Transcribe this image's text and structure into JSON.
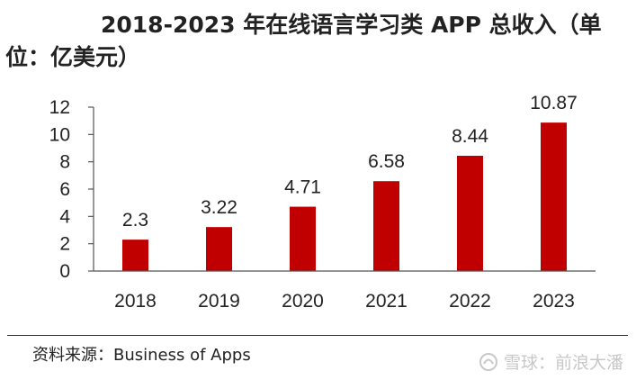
{
  "chart_data": {
    "type": "bar",
    "title": "2018-2023 年在线语言学习类 APP 总收入（单位：亿美元）",
    "categories": [
      "2018",
      "2019",
      "2020",
      "2021",
      "2022",
      "2023"
    ],
    "values": [
      2.3,
      3.22,
      4.71,
      6.58,
      8.44,
      10.87
    ],
    "value_labels": [
      "2.3",
      "3.22",
      "4.71",
      "6.58",
      "8.44",
      "10.87"
    ],
    "yticks": [
      "0",
      "2",
      "4",
      "6",
      "8",
      "10",
      "12"
    ],
    "ylim": [
      0,
      12
    ],
    "grid": false,
    "legend": "none",
    "bar_color": "#c00000"
  },
  "source": {
    "text": "资料来源：Business of Apps"
  },
  "watermark": {
    "text": "雪球：前浪大潘"
  }
}
